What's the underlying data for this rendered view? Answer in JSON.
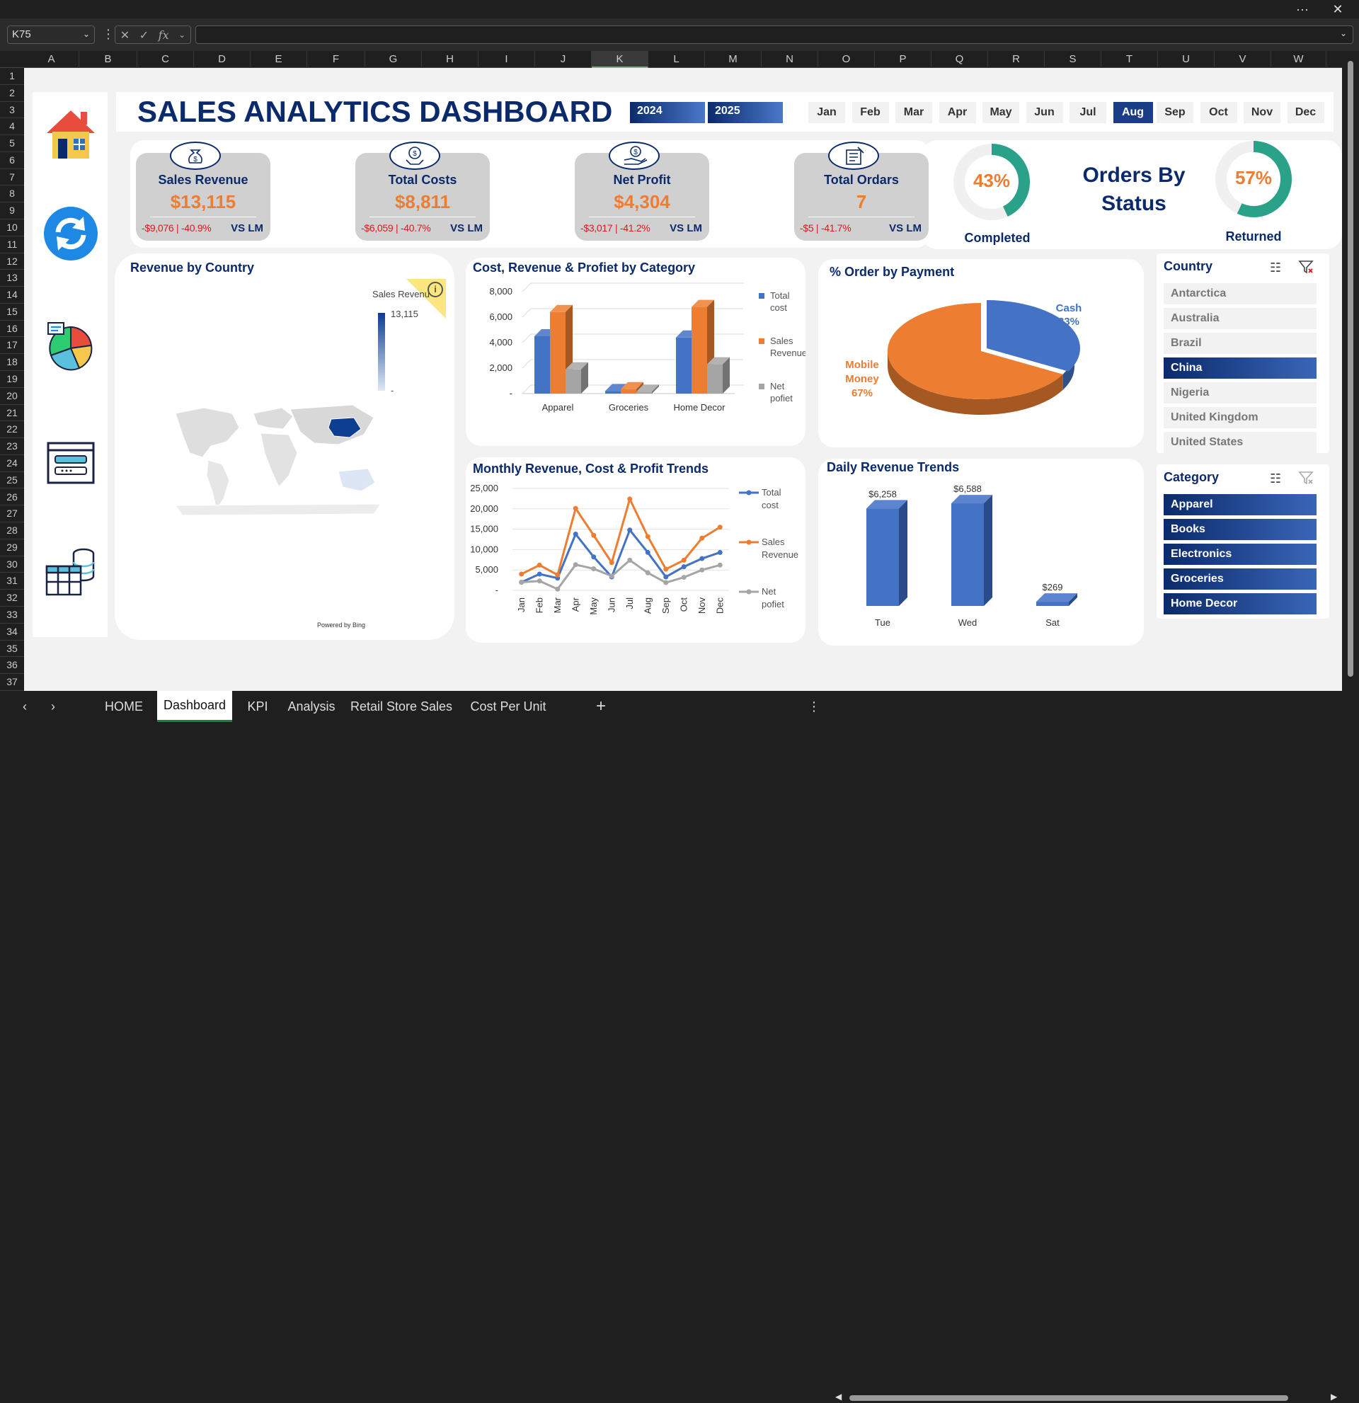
{
  "excel": {
    "namebox": "K75",
    "columns": [
      "A",
      "B",
      "C",
      "D",
      "E",
      "F",
      "G",
      "H",
      "I",
      "J",
      "K",
      "L",
      "M",
      "N",
      "O",
      "P",
      "Q",
      "R",
      "S",
      "T",
      "U",
      "V",
      "W"
    ],
    "rows": [
      "1",
      "2",
      "3",
      "4",
      "5",
      "6",
      "7",
      "8",
      "9",
      "10",
      "11",
      "12",
      "13",
      "14",
      "15",
      "16",
      "17",
      "18",
      "19",
      "20",
      "21",
      "22",
      "23",
      "24",
      "25",
      "26",
      "27",
      "28",
      "29",
      "30",
      "31",
      "32",
      "33",
      "34",
      "35",
      "36",
      "37"
    ],
    "tabs": [
      "HOME",
      "Dashboard",
      "KPI",
      "Analysis",
      "Retail Store Sales",
      "Cost Per Unit"
    ],
    "active_tab": "Dashboard"
  },
  "dashboard": {
    "title": "SALES ANALYTICS DASHBOARD",
    "years": [
      "2024",
      "2025"
    ],
    "months": [
      "Jan",
      "Feb",
      "Mar",
      "Apr",
      "May",
      "Jun",
      "Jul",
      "Aug",
      "Sep",
      "Oct",
      "Nov",
      "Dec"
    ],
    "selected_month": "Aug"
  },
  "kpis": [
    {
      "title": "Sales Revenue",
      "value": "$13,115",
      "delta": "-$9,076 | -40.9%",
      "vs": "VS LM"
    },
    {
      "title": "Total Costs",
      "value": "$8,811",
      "delta": "-$6,059 | -40.7%",
      "vs": "VS LM"
    },
    {
      "title": "Net Profit",
      "value": "$4,304",
      "delta": "-$3,017 | -41.2%",
      "vs": "VS LM"
    },
    {
      "title": "Total Ordars",
      "value": "7",
      "delta": "-$5 | -41.7%",
      "vs": "VS LM"
    }
  ],
  "orders_status": {
    "title_line1": "Orders By",
    "title_line2": "Status",
    "completed": {
      "label": "Completed",
      "value": "43%",
      "pct": 43
    },
    "returned": {
      "label": "Returned",
      "value": "57%",
      "pct": 57
    }
  },
  "map": {
    "title": "Revenue by Country",
    "legend_title": "Sales Revenu",
    "legend_max": "13,115",
    "legend_min": "-",
    "credit": "Powered by Bing"
  },
  "slicers": {
    "country": {
      "title": "Country",
      "items": [
        "Antarctica",
        "Australia",
        "Brazil",
        "China",
        "Nigeria",
        "United Kingdom",
        "United States"
      ],
      "selected": "China"
    },
    "category": {
      "title": "Category",
      "items": [
        "Apparel",
        "Books",
        "Electronics",
        "Groceries",
        "Home Decor"
      ],
      "selected": "all"
    }
  },
  "chart_data": [
    {
      "type": "bar",
      "title": "Cost, Revenue & Profiet by Category",
      "categories": [
        "Apparel",
        "Groceries",
        "Home Decor"
      ],
      "series": [
        {
          "name": "Total cost",
          "values": [
            4500,
            200,
            4400
          ],
          "color": "#4472c4"
        },
        {
          "name": "Sales Revenue",
          "values": [
            6400,
            350,
            6800
          ],
          "color": "#ed7d31"
        },
        {
          "name": "Net pofiet",
          "values": [
            1900,
            150,
            2300
          ],
          "color": "#a5a5a5"
        }
      ],
      "yticks": [
        "-",
        "2,000",
        "4,000",
        "6,000",
        "8,000"
      ],
      "ylim": [
        0,
        8000
      ]
    },
    {
      "type": "pie",
      "title": "% Order by Payment",
      "slices": [
        {
          "name": "Cash",
          "label": "33%",
          "value": 33,
          "color": "#4472c4"
        },
        {
          "name": "Mobile Money",
          "label": "67%",
          "value": 67,
          "color": "#ed7d31"
        }
      ]
    },
    {
      "type": "line",
      "title": "Monthly Revenue, Cost & Profit Trends",
      "categories": [
        "Jan",
        "Feb",
        "Mar",
        "Apr",
        "May",
        "Jun",
        "Jul",
        "Aug",
        "Sep",
        "Oct",
        "Nov",
        "Dec"
      ],
      "series": [
        {
          "name": "Total cost",
          "values": [
            2000,
            4000,
            3000,
            13800,
            8200,
            3300,
            14800,
            9300,
            3300,
            5800,
            7800,
            9300
          ],
          "color": "#4472c4"
        },
        {
          "name": "Sales Revenue",
          "values": [
            4000,
            6200,
            3800,
            20100,
            13500,
            6800,
            22400,
            13200,
            5200,
            7400,
            12800,
            15500
          ],
          "color": "#ed7d31"
        },
        {
          "name": "Net pofiet",
          "values": [
            2000,
            2300,
            300,
            6300,
            5300,
            3500,
            7400,
            4300,
            1900,
            3200,
            5000,
            6200
          ],
          "color": "#a5a5a5"
        }
      ],
      "yticks": [
        "-",
        "5,000",
        "10,000",
        "15,000",
        "20,000",
        "25,000"
      ],
      "ylim": [
        0,
        25000
      ]
    },
    {
      "type": "bar",
      "title": "Daily Revenue Trends",
      "categories": [
        "Tue",
        "Wed",
        "Sat"
      ],
      "values": [
        6258,
        6588,
        269
      ],
      "labels": [
        "$6,258",
        "$6,588",
        "$269"
      ],
      "ylim": [
        0,
        7000
      ]
    }
  ]
}
